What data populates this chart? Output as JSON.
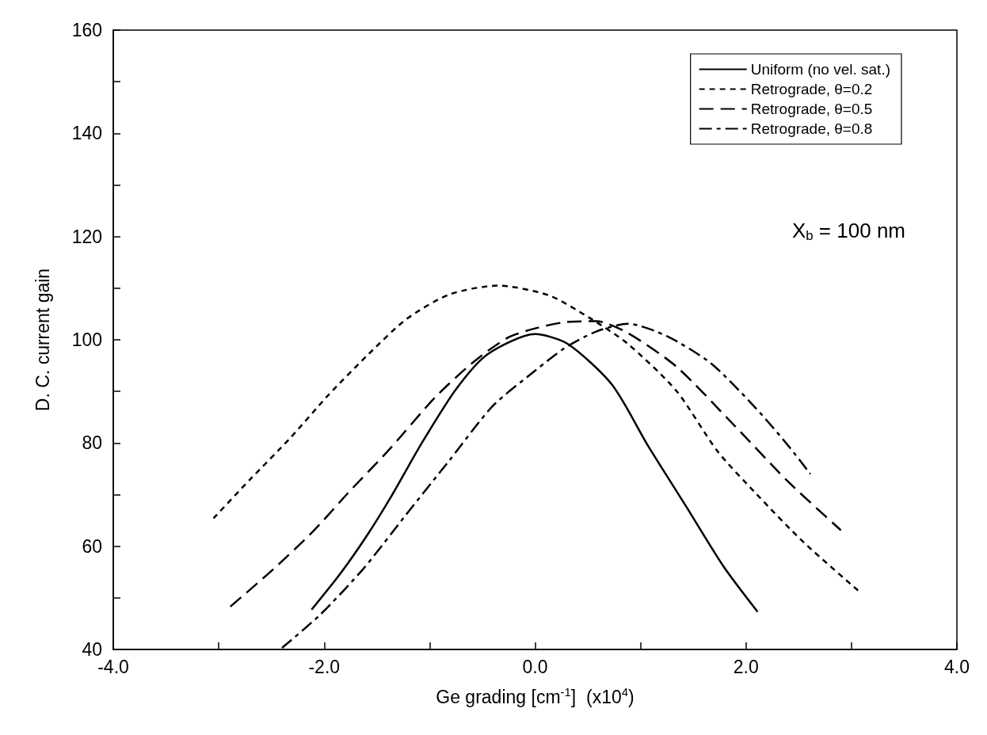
{
  "chart_data": {
    "type": "line",
    "xlabel": "Ge grading [cm$^{-1}$]  (x10$^{4}$)",
    "ylabel": "D. C. current gain",
    "annotations": [
      "X$_{b}$ = 100 nm"
    ],
    "xlim": [
      -4,
      4
    ],
    "xticks": [
      {
        "value": -4,
        "label": "-4.0"
      },
      {
        "value": -3,
        "label": null
      },
      {
        "value": -2,
        "label": "-2.0"
      },
      {
        "value": -1,
        "label": null
      },
      {
        "value": 0,
        "label": "0.0"
      },
      {
        "value": 1,
        "label": null
      },
      {
        "value": 2,
        "label": "2.0"
      },
      {
        "value": 3,
        "label": null
      },
      {
        "value": 4,
        "label": "4.0"
      }
    ],
    "ylim": [
      40,
      160
    ],
    "yticks": [
      40,
      {
        "value": 50,
        "label": null
      },
      60,
      {
        "value": 70,
        "label": null
      },
      80,
      {
        "value": 90,
        "label": null
      },
      100,
      {
        "value": 110,
        "label": null
      },
      120,
      {
        "value": 130,
        "label": null
      },
      140,
      {
        "value": 150,
        "label": null
      },
      160
    ],
    "grid": false,
    "legend": "top right",
    "marker": "none",
    "series": [
      {
        "name": "Uniform (no vel. sat.)",
        "color": "#000000",
        "line_style": "solid",
        "x": [
          -2.12,
          -1.85,
          -1.6,
          -1.36,
          -1.08,
          -0.75,
          -0.45,
          0,
          0.31,
          0.73,
          1.07,
          1.43,
          1.79,
          2.11
        ],
        "values": [
          47.7,
          54.6,
          61.9,
          69.8,
          79.8,
          90.4,
          97.2,
          101.1,
          99.2,
          91.3,
          79.5,
          67.8,
          56,
          47.3
        ]
      },
      {
        "name": "Retrograde, θ=0.2",
        "color": "#000000",
        "line_style": "dotted",
        "x": [
          -3.05,
          -2.7,
          -2.32,
          -1.96,
          -1.58,
          -1.22,
          -0.81,
          -0.35,
          0.13,
          0.52,
          0.88,
          1.34,
          1.73,
          2.1,
          2.55,
          3.07
        ],
        "values": [
          65.4,
          73,
          81,
          89.3,
          97.2,
          104,
          108.8,
          110.5,
          108.6,
          104.2,
          99.2,
          90.1,
          78.4,
          70.1,
          60.7,
          51.3
        ]
      },
      {
        "name": "Retrograde, θ=0.5",
        "color": "#000000",
        "line_style": "dashed",
        "x": [
          -2.89,
          -2.48,
          -2.1,
          -1.77,
          -1.38,
          -0.95,
          -0.59,
          -0.26,
          0,
          0.28,
          0.58,
          0.88,
          1.34,
          1.88,
          2.4,
          2.9
        ],
        "values": [
          48.3,
          55.6,
          63,
          70.4,
          78.8,
          88.8,
          95.6,
          100.4,
          102.2,
          103.4,
          103.6,
          101.3,
          94.8,
          83.6,
          72.5,
          63.1
        ]
      },
      {
        "name": "Retrograde, θ=0.8",
        "color": "#000000",
        "line_style": "dashdot",
        "x": [
          -2.4,
          -2.04,
          -1.63,
          -1.22,
          -0.81,
          -0.4,
          0,
          0.28,
          0.58,
          0.88,
          1.25,
          1.67,
          2.1,
          2.4,
          2.61
        ],
        "values": [
          40.3,
          46.7,
          55.6,
          66.2,
          76.7,
          87.2,
          94,
          98.4,
          101.6,
          103.1,
          100.7,
          95.4,
          86.6,
          79.5,
          74
        ]
      }
    ]
  }
}
